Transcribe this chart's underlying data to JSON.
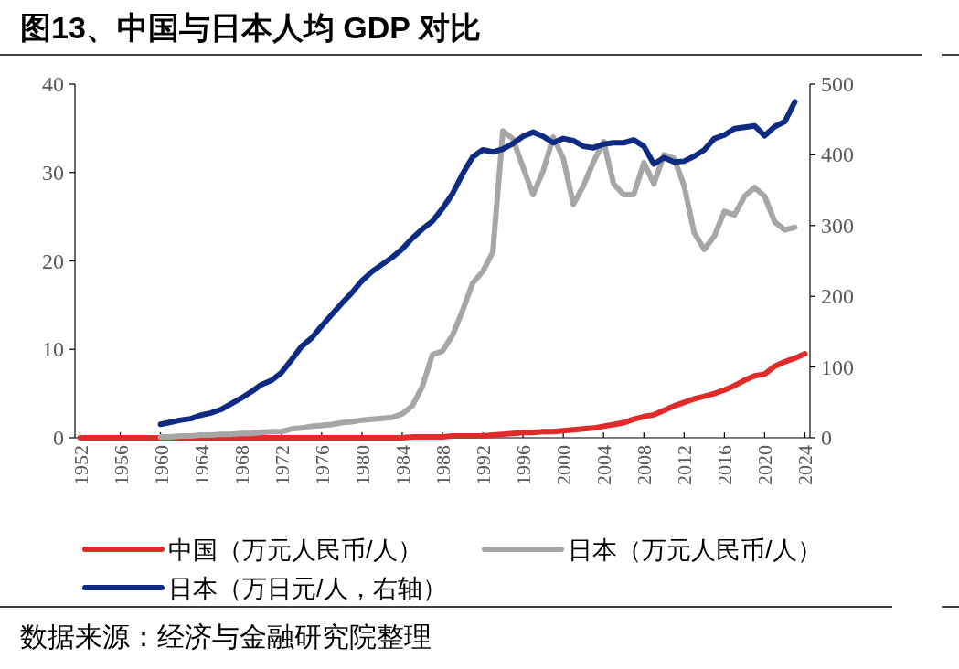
{
  "chart_data": {
    "type": "line",
    "title": "图13、中国与日本人均 GDP 对比",
    "annotations": [
      "数据来源：经济与金融研究院整理"
    ],
    "categories": [
      "1952",
      null,
      null,
      null,
      "1956",
      null,
      null,
      null,
      "1960",
      null,
      null,
      null,
      "1964",
      null,
      null,
      null,
      "1968",
      null,
      null,
      null,
      "1972",
      null,
      null,
      null,
      "1976",
      null,
      null,
      null,
      "1980",
      null,
      null,
      null,
      "1984",
      null,
      null,
      null,
      "1988",
      null,
      null,
      null,
      "1992",
      null,
      null,
      null,
      "1996",
      null,
      null,
      null,
      "2000",
      null,
      null,
      null,
      "2004",
      null,
      null,
      null,
      "2008",
      null,
      null,
      null,
      "2012",
      null,
      null,
      null,
      "2016",
      null,
      null,
      null,
      "2020",
      null,
      null,
      null,
      "2024"
    ],
    "ylim": [
      0,
      40
    ],
    "yticks": [
      0,
      10,
      20,
      30,
      40
    ],
    "y2lim": [
      0,
      500
    ],
    "y2ticks": [
      0,
      100,
      200,
      300,
      400,
      500
    ],
    "legend": "bottom",
    "grid": false,
    "marker": "none",
    "line_style": "solid",
    "series": [
      {
        "name": "中国（万元人民币/人）",
        "color": "#e02b2b",
        "values": [
          0,
          0,
          0,
          0,
          0,
          0,
          0,
          0,
          0,
          0,
          0,
          0,
          0,
          0,
          0,
          0,
          0,
          0,
          0,
          0,
          0,
          0,
          0,
          0,
          0,
          0,
          0,
          0,
          0,
          0,
          0,
          0,
          0,
          0.1,
          0.1,
          0.1,
          0.1,
          0.2,
          0.2,
          0.2,
          0.2,
          0.3,
          0.4,
          0.5,
          0.6,
          0.6,
          0.7,
          0.7,
          0.8,
          0.9,
          1.0,
          1.1,
          1.3,
          1.5,
          1.7,
          2.1,
          2.4,
          2.6,
          3.1,
          3.6,
          4.0,
          4.4,
          4.7,
          5.0,
          5.4,
          5.9,
          6.5,
          7.0,
          7.2,
          8.1,
          8.6,
          9.0,
          9.5
        ]
      },
      {
        "name": "日本（万元人民币/人）",
        "color": "#a6a6a6",
        "values": [
          null,
          null,
          null,
          null,
          null,
          null,
          null,
          null,
          0.1,
          0.1,
          0.2,
          0.2,
          0.3,
          0.3,
          0.4,
          0.4,
          0.5,
          0.5,
          0.6,
          0.7,
          0.7,
          1.0,
          1.1,
          1.3,
          1.4,
          1.5,
          1.7,
          1.8,
          2.0,
          2.1,
          2.2,
          2.3,
          2.7,
          3.6,
          5.8,
          9.4,
          9.8,
          11.6,
          14.4,
          17.5,
          18.8,
          21.0,
          34.7,
          33.8,
          30.6,
          27.5,
          30.2,
          34.0,
          31.6,
          26.4,
          28.5,
          31.2,
          33.5,
          28.7,
          27.5,
          27.5,
          31.1,
          28.7,
          32.0,
          31.6,
          28.5,
          23.2,
          21.3,
          22.8,
          25.6,
          25.2,
          27.3,
          28.3,
          27.3,
          24.4,
          23.5,
          23.8,
          null
        ]
      },
      {
        "name": "日本（万日元/人，右轴）",
        "color": "#0e2b84",
        "axis": "y2",
        "values": [
          null,
          null,
          null,
          null,
          null,
          null,
          null,
          null,
          19,
          22,
          25,
          27,
          32,
          35,
          40,
          48,
          56,
          65,
          75,
          81,
          92,
          110,
          129,
          141,
          158,
          174,
          190,
          205,
          222,
          235,
          245,
          255,
          267,
          282,
          295,
          306,
          324,
          345,
          373,
          397,
          407,
          404,
          408,
          416,
          426,
          432,
          426,
          417,
          423,
          420,
          412,
          410,
          415,
          417,
          417,
          421,
          412,
          387,
          396,
          390,
          391,
          398,
          407,
          423,
          428,
          437,
          439,
          441,
          427,
          440,
          447,
          475,
          null
        ]
      }
    ]
  }
}
